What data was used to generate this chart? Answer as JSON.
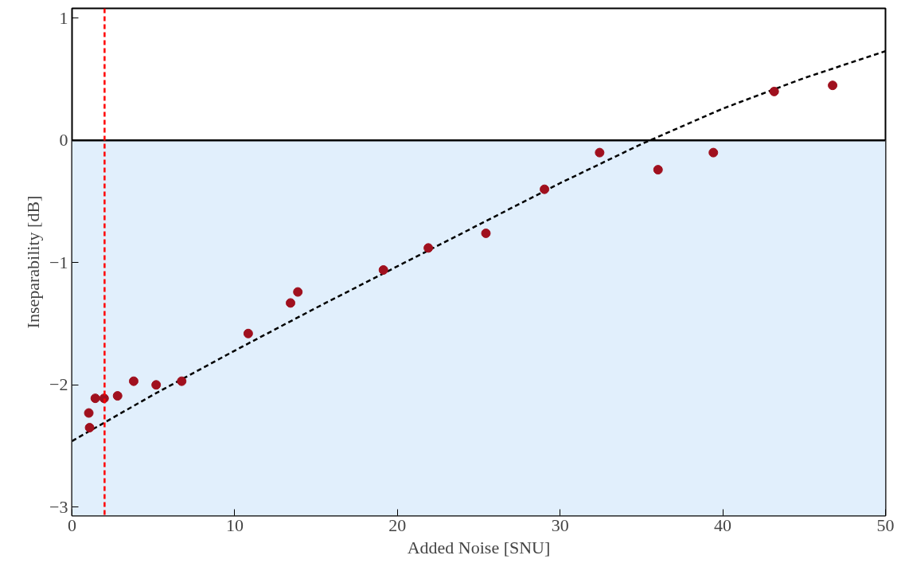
{
  "chart_data": {
    "type": "scatter",
    "xlabel": "Added Noise [SNU]",
    "ylabel": "Inseparability [dB]",
    "xlim": [
      0,
      50
    ],
    "ylim": [
      -3.07,
      1.08
    ],
    "xticks": [
      0,
      10,
      20,
      30,
      40,
      50
    ],
    "yticks": [
      {
        "value": -3,
        "label": "−3"
      },
      {
        "value": -2,
        "label": "−2"
      },
      {
        "value": -1,
        "label": "−1"
      },
      0,
      1
    ],
    "grid": false,
    "marker": "circle",
    "series": [
      {
        "color": "#a0101e",
        "x": [
          1.03,
          1.08,
          1.43,
          1.97,
          2.8,
          3.79,
          5.17,
          6.74,
          10.83,
          13.43,
          13.88,
          19.14,
          21.9,
          25.44,
          29.04,
          32.43,
          36.02,
          39.42,
          43.16,
          46.75
        ],
        "values": [
          -2.23,
          -2.35,
          -2.11,
          -2.11,
          -2.09,
          -1.97,
          -2.0,
          -1.97,
          -1.58,
          -1.33,
          -1.24,
          -1.06,
          -0.88,
          -0.76,
          -0.4,
          -0.1,
          -0.24,
          -0.1,
          0.4,
          0.45
        ]
      },
      {
        "type": "line",
        "color": "#000000",
        "line_style": "dashed",
        "marker": "none",
        "x": [
          0,
          5,
          10,
          15,
          20,
          25,
          30,
          35,
          40,
          45,
          50
        ],
        "values": [
          -2.46,
          -2.08,
          -1.72,
          -1.37,
          -1.03,
          -0.69,
          -0.35,
          -0.03,
          0.26,
          0.51,
          0.73
        ]
      }
    ],
    "ref_lines": [
      {
        "axis": "y",
        "value": 0,
        "color": "#000000",
        "line_style": "solid"
      },
      {
        "axis": "x",
        "value": 2,
        "color": "#ff0000",
        "line_style": "dashed"
      }
    ],
    "bands": [
      {
        "axis": "y",
        "from": -3.07,
        "to": 0,
        "color": "#e1effc"
      }
    ]
  }
}
